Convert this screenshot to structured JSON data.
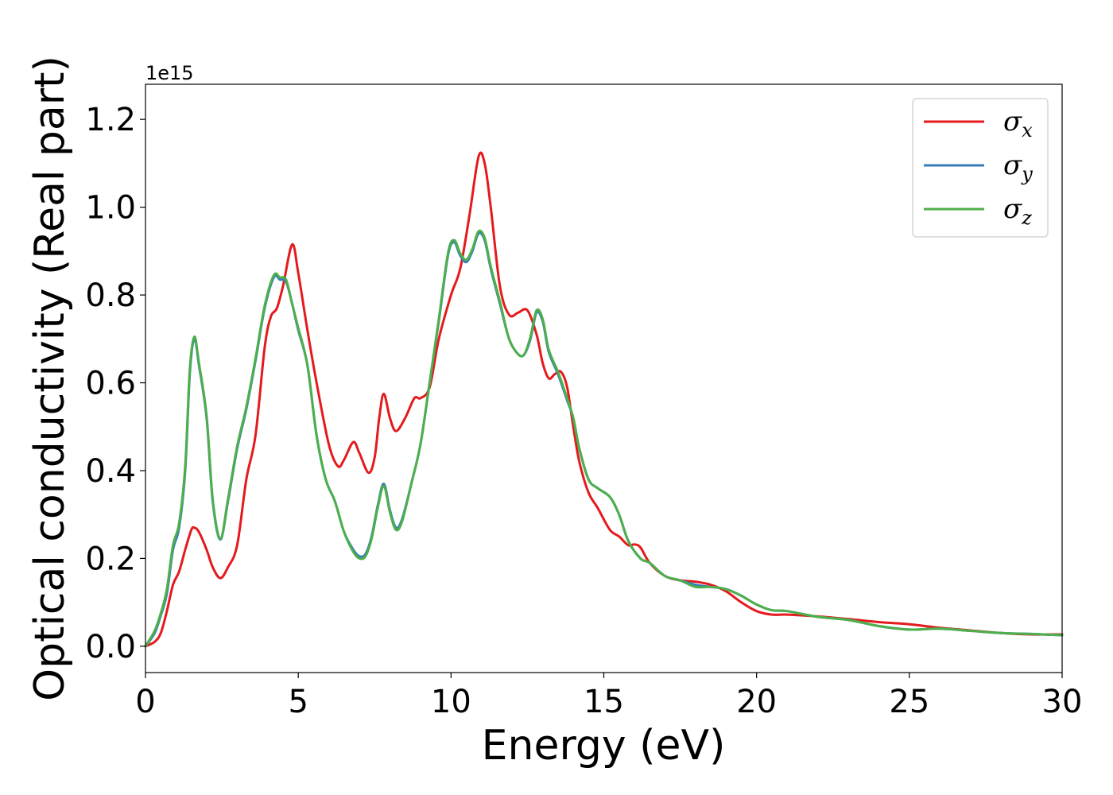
{
  "chart_data": {
    "type": "line",
    "title": "",
    "xlabel": "Energy (eV)",
    "ylabel": "Optical conductivity (Real part)",
    "y_offset_label": "1e15",
    "xlim": [
      0,
      30
    ],
    "ylim": [
      -0.06,
      1.28
    ],
    "x_ticks": [
      0,
      5,
      10,
      15,
      20,
      25,
      30
    ],
    "y_ticks": [
      0.0,
      0.2,
      0.4,
      0.6,
      0.8,
      1.0,
      1.2
    ],
    "x_tick_labels": [
      "0",
      "5",
      "10",
      "15",
      "20",
      "25",
      "30"
    ],
    "y_tick_labels": [
      "0.0",
      "0.2",
      "0.4",
      "0.6",
      "0.8",
      "1.0",
      "1.2"
    ],
    "grid": false,
    "legend_position": "top-right",
    "series": [
      {
        "name": "σx",
        "name_base": "σ",
        "name_sub": "x",
        "color": "#e41a1c",
        "x": [
          0,
          0.3,
          0.5,
          0.7,
          0.9,
          1.1,
          1.3,
          1.5,
          1.6,
          1.75,
          2.0,
          2.2,
          2.45,
          2.7,
          3.0,
          3.3,
          3.6,
          3.9,
          4.1,
          4.3,
          4.5,
          4.8,
          5.0,
          5.3,
          5.6,
          6.0,
          6.3,
          6.5,
          6.8,
          7.0,
          7.3,
          7.5,
          7.65,
          7.8,
          8.0,
          8.2,
          8.5,
          8.8,
          9.0,
          9.3,
          9.6,
          10.0,
          10.3,
          10.6,
          10.9,
          11.1,
          11.3,
          11.6,
          11.9,
          12.2,
          12.5,
          12.8,
          13.0,
          13.2,
          13.4,
          13.6,
          13.8,
          14.0,
          14.2,
          14.5,
          14.8,
          15.2,
          15.5,
          15.8,
          16.0,
          16.2,
          16.5,
          17.0,
          17.5,
          18.0,
          18.5,
          19.0,
          19.5,
          20.0,
          20.5,
          21.0,
          22.0,
          23.0,
          24.0,
          25.0,
          26.0,
          27.0,
          28.0,
          29.0,
          30.0
        ],
        "values": [
          0.0,
          0.01,
          0.03,
          0.08,
          0.14,
          0.17,
          0.22,
          0.265,
          0.27,
          0.26,
          0.22,
          0.18,
          0.155,
          0.18,
          0.23,
          0.38,
          0.48,
          0.68,
          0.75,
          0.77,
          0.82,
          0.915,
          0.85,
          0.72,
          0.6,
          0.46,
          0.41,
          0.425,
          0.465,
          0.44,
          0.395,
          0.43,
          0.52,
          0.575,
          0.52,
          0.49,
          0.52,
          0.565,
          0.565,
          0.59,
          0.7,
          0.8,
          0.86,
          0.98,
          1.115,
          1.1,
          1.0,
          0.82,
          0.755,
          0.76,
          0.765,
          0.71,
          0.645,
          0.61,
          0.62,
          0.625,
          0.59,
          0.5,
          0.42,
          0.35,
          0.315,
          0.265,
          0.25,
          0.23,
          0.232,
          0.225,
          0.19,
          0.16,
          0.15,
          0.147,
          0.14,
          0.125,
          0.1,
          0.08,
          0.072,
          0.072,
          0.068,
          0.062,
          0.055,
          0.05,
          0.042,
          0.036,
          0.03,
          0.027,
          0.027
        ]
      },
      {
        "name": "σy",
        "name_base": "σ",
        "name_sub": "y",
        "color": "#377eb8",
        "x": [
          0,
          0.3,
          0.5,
          0.7,
          0.9,
          1.1,
          1.3,
          1.45,
          1.6,
          1.75,
          2.0,
          2.2,
          2.45,
          2.7,
          3.0,
          3.3,
          3.6,
          3.9,
          4.2,
          4.4,
          4.6,
          4.8,
          5.0,
          5.3,
          5.6,
          5.9,
          6.2,
          6.5,
          6.8,
          7.0,
          7.2,
          7.4,
          7.6,
          7.8,
          8.0,
          8.2,
          8.4,
          8.7,
          9.0,
          9.3,
          9.6,
          9.9,
          10.1,
          10.3,
          10.5,
          10.7,
          10.9,
          11.1,
          11.3,
          11.6,
          11.9,
          12.2,
          12.4,
          12.6,
          12.8,
          13.0,
          13.2,
          13.5,
          13.8,
          14.0,
          14.2,
          14.5,
          14.8,
          15.2,
          15.5,
          15.8,
          16.2,
          16.5,
          17.0,
          17.5,
          18.0,
          18.5,
          19.0,
          19.5,
          20.0,
          20.5,
          21.0,
          22.0,
          23.0,
          24.0,
          25.0,
          26.0,
          27.0,
          28.0,
          29.0,
          30.0
        ],
        "values": [
          0.0,
          0.03,
          0.07,
          0.12,
          0.22,
          0.27,
          0.4,
          0.62,
          0.7,
          0.64,
          0.52,
          0.33,
          0.243,
          0.33,
          0.45,
          0.54,
          0.65,
          0.77,
          0.84,
          0.835,
          0.83,
          0.78,
          0.72,
          0.64,
          0.48,
          0.38,
          0.33,
          0.26,
          0.22,
          0.205,
          0.21,
          0.25,
          0.32,
          0.37,
          0.31,
          0.27,
          0.29,
          0.37,
          0.46,
          0.6,
          0.74,
          0.89,
          0.92,
          0.89,
          0.875,
          0.9,
          0.94,
          0.925,
          0.86,
          0.78,
          0.7,
          0.665,
          0.665,
          0.7,
          0.76,
          0.74,
          0.67,
          0.62,
          0.56,
          0.52,
          0.45,
          0.38,
          0.36,
          0.34,
          0.3,
          0.24,
          0.2,
          0.19,
          0.16,
          0.15,
          0.14,
          0.135,
          0.13,
          0.115,
          0.095,
          0.082,
          0.08,
          0.067,
          0.06,
          0.046,
          0.038,
          0.04,
          0.035,
          0.03,
          0.028,
          0.025
        ]
      },
      {
        "name": "σz",
        "name_base": "σ",
        "name_sub": "z",
        "color": "#4daf4a",
        "x": [
          0,
          0.3,
          0.5,
          0.7,
          0.9,
          1.1,
          1.3,
          1.45,
          1.6,
          1.75,
          2.0,
          2.2,
          2.45,
          2.7,
          3.0,
          3.3,
          3.6,
          3.9,
          4.2,
          4.4,
          4.6,
          4.8,
          5.0,
          5.3,
          5.6,
          5.9,
          6.2,
          6.5,
          6.8,
          7.0,
          7.2,
          7.4,
          7.6,
          7.8,
          8.0,
          8.2,
          8.4,
          8.7,
          9.0,
          9.3,
          9.6,
          9.9,
          10.1,
          10.3,
          10.5,
          10.7,
          10.9,
          11.1,
          11.3,
          11.6,
          11.9,
          12.2,
          12.4,
          12.6,
          12.8,
          13.0,
          13.2,
          13.5,
          13.8,
          14.0,
          14.2,
          14.5,
          14.8,
          15.2,
          15.5,
          15.8,
          16.2,
          16.5,
          17.0,
          17.5,
          18.0,
          18.5,
          19.0,
          19.5,
          20.0,
          20.5,
          21.0,
          22.0,
          23.0,
          24.0,
          25.0,
          26.0,
          27.0,
          28.0,
          29.0,
          30.0
        ],
        "values": [
          0.0,
          0.035,
          0.075,
          0.13,
          0.23,
          0.28,
          0.41,
          0.63,
          0.705,
          0.645,
          0.525,
          0.335,
          0.245,
          0.335,
          0.455,
          0.545,
          0.655,
          0.775,
          0.845,
          0.84,
          0.835,
          0.78,
          0.725,
          0.64,
          0.48,
          0.38,
          0.33,
          0.26,
          0.215,
          0.2,
          0.205,
          0.245,
          0.315,
          0.365,
          0.305,
          0.265,
          0.285,
          0.37,
          0.46,
          0.6,
          0.745,
          0.895,
          0.925,
          0.895,
          0.88,
          0.905,
          0.945,
          0.93,
          0.865,
          0.785,
          0.7,
          0.665,
          0.665,
          0.705,
          0.765,
          0.745,
          0.675,
          0.625,
          0.565,
          0.52,
          0.45,
          0.38,
          0.36,
          0.34,
          0.3,
          0.24,
          0.2,
          0.19,
          0.16,
          0.15,
          0.135,
          0.135,
          0.13,
          0.115,
          0.095,
          0.082,
          0.08,
          0.067,
          0.06,
          0.046,
          0.038,
          0.04,
          0.035,
          0.03,
          0.028,
          0.025
        ]
      }
    ]
  }
}
